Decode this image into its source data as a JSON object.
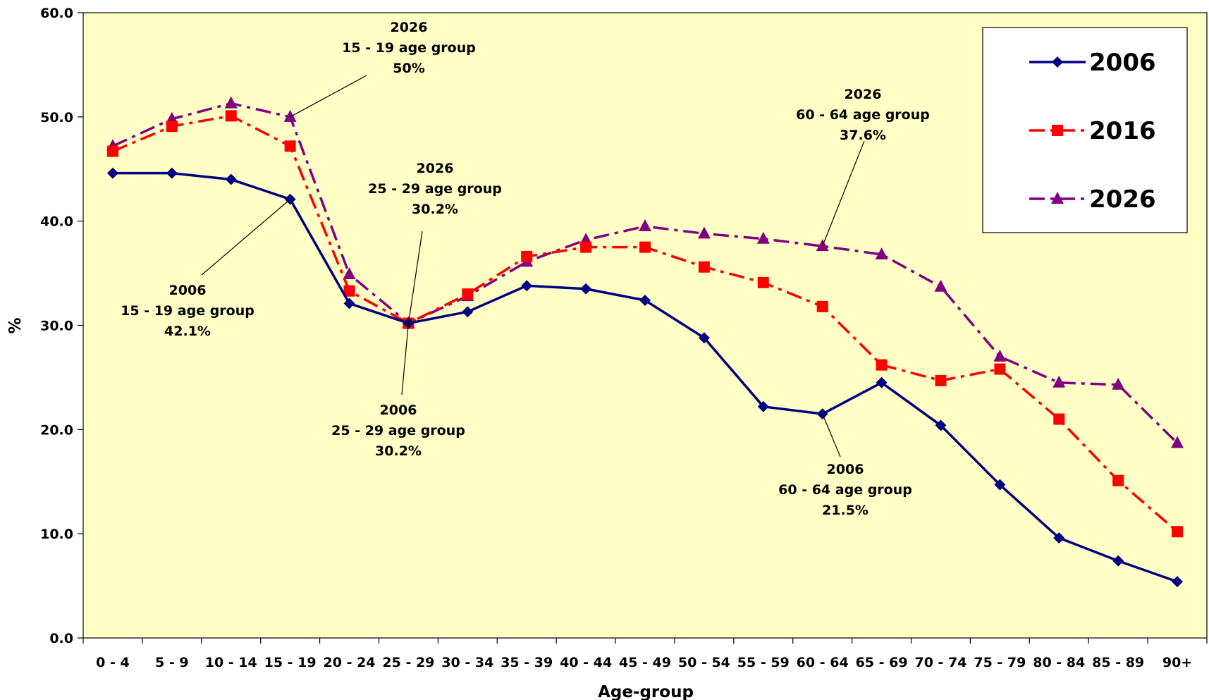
{
  "chart_data": {
    "type": "line",
    "title": "",
    "xlabel": "Age-group",
    "ylabel": "%",
    "ylim": [
      0,
      60
    ],
    "y_ticks": [
      "0.0",
      "10.0",
      "20.0",
      "30.0",
      "40.0",
      "50.0",
      "60.0"
    ],
    "categories": [
      "0 - 4",
      "5 - 9",
      "10 - 14",
      "15 - 19",
      "20 - 24",
      "25 - 29",
      "30 - 34",
      "35 - 39",
      "40 - 44",
      "45 - 49",
      "50 - 54",
      "55 - 59",
      "60 - 64",
      "65 - 69",
      "70 - 74",
      "75 - 79",
      "80 - 84",
      "85 - 89",
      "90+"
    ],
    "plot_background": "#ffffc6",
    "legend_position": "top-right",
    "series": [
      {
        "name": "2006",
        "color": "#000080",
        "marker": "diamond",
        "dash": "solid",
        "values": [
          44.6,
          44.6,
          44.0,
          42.1,
          32.1,
          30.2,
          31.3,
          33.8,
          33.5,
          32.4,
          28.8,
          22.2,
          21.5,
          24.5,
          20.4,
          14.7,
          9.6,
          7.4,
          5.4
        ]
      },
      {
        "name": "2016",
        "color": "#ff0000",
        "marker": "square",
        "dash": "dashdot",
        "values": [
          46.7,
          49.1,
          50.1,
          47.2,
          33.3,
          30.2,
          33.0,
          36.6,
          37.5,
          37.5,
          35.6,
          34.1,
          31.8,
          26.2,
          24.7,
          25.8,
          21.0,
          15.1,
          10.2
        ]
      },
      {
        "name": "2026",
        "color": "#800080",
        "marker": "triangle",
        "dash": "dashdot",
        "values": [
          47.2,
          49.8,
          51.3,
          50.0,
          34.9,
          30.2,
          32.8,
          36.1,
          38.2,
          39.5,
          38.8,
          38.3,
          37.6,
          36.8,
          33.7,
          27.0,
          24.5,
          24.3,
          18.7
        ]
      }
    ],
    "annotations": [
      {
        "lines": [
          "2026",
          "15 - 19 age group",
          "50%"
        ],
        "series": "2026",
        "category": "15 - 19"
      },
      {
        "lines": [
          "2006",
          "15 - 19 age group",
          "42.1%"
        ],
        "series": "2006",
        "category": "15 - 19"
      },
      {
        "lines": [
          "2026",
          "25 - 29 age group",
          "30.2%"
        ],
        "series": "2026",
        "category": "25 - 29"
      },
      {
        "lines": [
          "2006",
          "25 - 29 age group",
          "30.2%"
        ],
        "series": "2006",
        "category": "25 - 29"
      },
      {
        "lines": [
          "2026",
          "60 - 64 age group",
          "37.6%"
        ],
        "series": "2026",
        "category": "60 - 64"
      },
      {
        "lines": [
          "2006",
          "60 - 64 age group",
          "21.5%"
        ],
        "series": "2006",
        "category": "60 - 64"
      }
    ]
  }
}
